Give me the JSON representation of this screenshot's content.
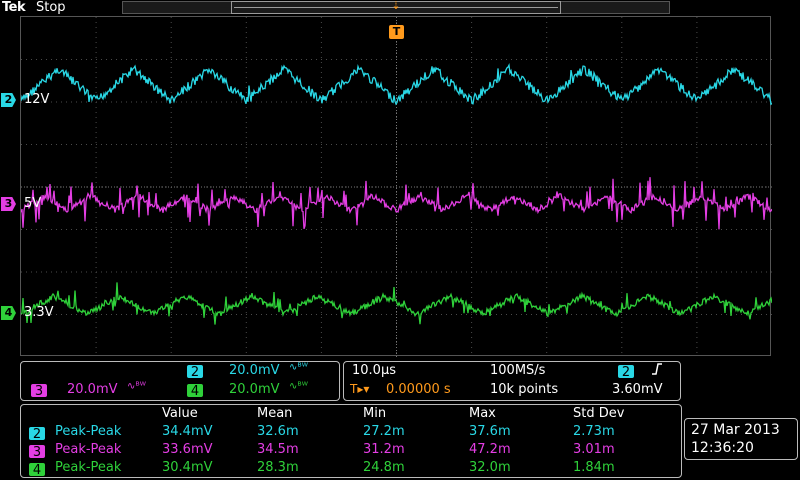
{
  "header": {
    "brand": "Tek",
    "acquisition_state": "Stop"
  },
  "trigger_marker": "T",
  "channels": [
    {
      "id": "2",
      "label": "12V",
      "color": "#29d8e6"
    },
    {
      "id": "3",
      "label": "5V",
      "color": "#e43ee4"
    },
    {
      "id": "4",
      "label": "3.3V",
      "color": "#2fd13a"
    }
  ],
  "vertical_scales": {
    "ch2": {
      "badge": "2",
      "value": "20.0mV",
      "bw_icon": "∿ᴮᵂ"
    },
    "ch3": {
      "badge": "3",
      "value": "20.0mV",
      "bw_icon": "∿ᴮᵂ"
    },
    "ch4": {
      "badge": "4",
      "value": "20.0mV",
      "bw_icon": "∿ᴮᵂ"
    }
  },
  "timebase": {
    "horizontal_scale": "10.0µs",
    "trigger_position_icon": "T▸▾",
    "trigger_delay": "0.00000 s",
    "sample_rate": "100MS/s",
    "record_length": "10k points",
    "trigger_source": "2",
    "trigger_slope_icon": "rising-edge-icon",
    "trigger_level": "3.60mV"
  },
  "measurements": {
    "headers": [
      "Value",
      "Mean",
      "Min",
      "Max",
      "Std Dev"
    ],
    "rows": [
      {
        "channel": "2",
        "type": "Peak-Peak",
        "value": "34.4mV",
        "mean": "32.6m",
        "min": "27.2m",
        "max": "37.6m",
        "std_dev": "2.73m"
      },
      {
        "channel": "3",
        "type": "Peak-Peak",
        "value": "33.6mV",
        "mean": "34.5m",
        "min": "31.2m",
        "max": "47.2m",
        "std_dev": "3.01m"
      },
      {
        "channel": "4",
        "type": "Peak-Peak",
        "value": "30.4mV",
        "mean": "28.3m",
        "min": "24.8m",
        "max": "32.0m",
        "std_dev": "1.84m"
      }
    ]
  },
  "datetime": {
    "date": "27 Mar 2013",
    "time": "12:36:20"
  }
}
